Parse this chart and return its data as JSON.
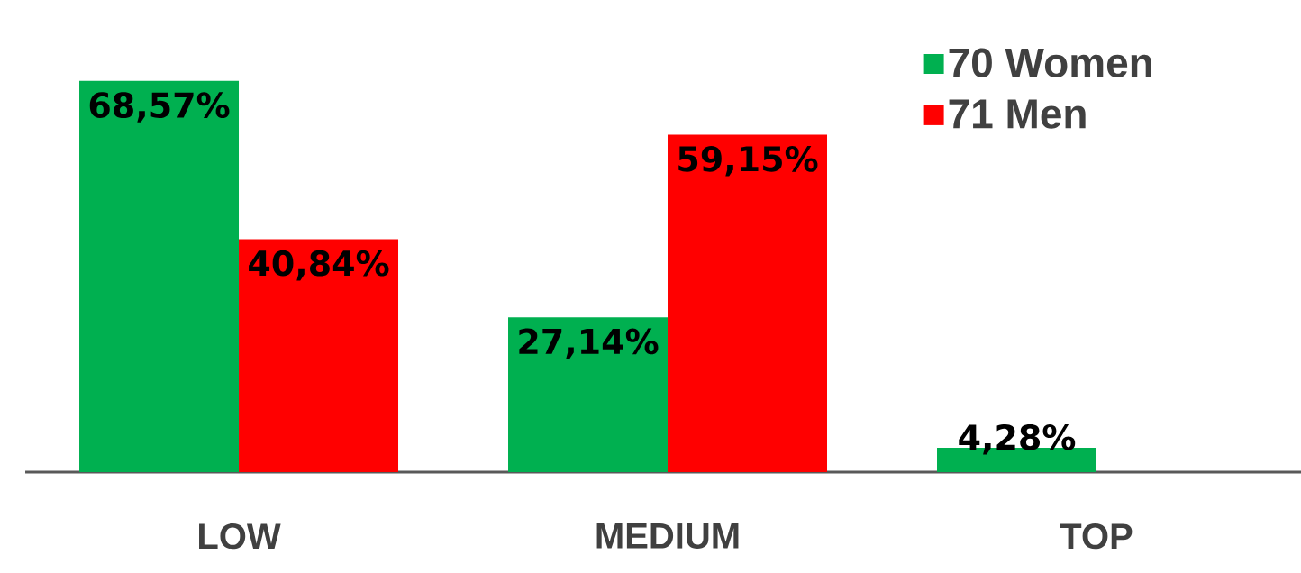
{
  "chart_data": {
    "type": "bar",
    "categories": [
      "LOW",
      "MEDIUM",
      "TOP"
    ],
    "series": [
      {
        "name": "70 Women",
        "color": "#00b050",
        "values": [
          68.57,
          27.14,
          4.28
        ],
        "value_labels": [
          "68,57%",
          "27,14%",
          "4,28%"
        ]
      },
      {
        "name": "71 Men",
        "color": "#ff0000",
        "values": [
          40.84,
          59.15,
          0
        ],
        "value_labels": [
          "40,84%",
          "59,15%",
          null
        ]
      }
    ],
    "legend": "top right",
    "grid": false
  }
}
